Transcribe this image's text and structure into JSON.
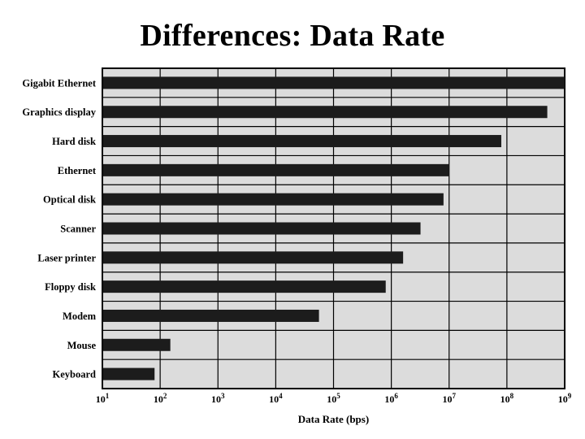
{
  "slide": {
    "title": "Differences: Data Rate"
  },
  "colors": {
    "plot_background": "#dcdcdc",
    "bar": "#1c1c1c",
    "grid": "#000000"
  },
  "chart_data": {
    "type": "bar",
    "orientation": "horizontal",
    "title": "Differences: Data Rate",
    "xlabel": "Data Rate (bps)",
    "ylabel": "",
    "x_scale": "log",
    "xlim": [
      10,
      1000000000
    ],
    "grid": true,
    "categories": [
      "Gigabit Ethernet",
      "Graphics display",
      "Hard disk",
      "Ethernet",
      "Optical disk",
      "Scanner",
      "Laser printer",
      "Floppy disk",
      "Modem",
      "Mouse",
      "Keyboard"
    ],
    "values": [
      1000000000,
      500000000,
      80000000,
      10000000,
      8000000,
      3200000,
      1600000,
      800000,
      56000,
      150,
      80
    ],
    "ticks": [
      {
        "base": "10",
        "exp": "1"
      },
      {
        "base": "10",
        "exp": "2"
      },
      {
        "base": "10",
        "exp": "3"
      },
      {
        "base": "10",
        "exp": "4"
      },
      {
        "base": "10",
        "exp": "5"
      },
      {
        "base": "10",
        "exp": "6"
      },
      {
        "base": "10",
        "exp": "7"
      },
      {
        "base": "10",
        "exp": "8"
      },
      {
        "base": "10",
        "exp": "9"
      }
    ]
  }
}
